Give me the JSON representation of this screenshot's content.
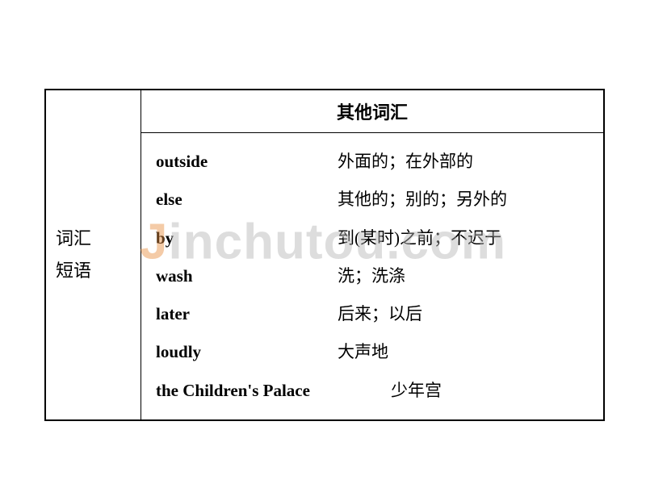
{
  "leftLabel": {
    "line1": "词汇",
    "line2": "短语"
  },
  "header": "其他词汇",
  "vocab": [
    {
      "eng": "outside",
      "chn": "外面的；在外部的"
    },
    {
      "eng": "else",
      "chn": "其他的；别的；另外的"
    },
    {
      "eng": "by",
      "chn": "到(某时)之前；不迟于"
    },
    {
      "eng": "wash",
      "chn": "洗；洗涤"
    },
    {
      "eng": "later",
      "chn": "后来；以后"
    },
    {
      "eng": "loudly",
      "chn": "大声地"
    }
  ],
  "lastRow": {
    "eng": "the Children's Palace",
    "chn": "少年宫"
  },
  "watermark": {
    "first": "J",
    "rest": "inchutou.com"
  }
}
